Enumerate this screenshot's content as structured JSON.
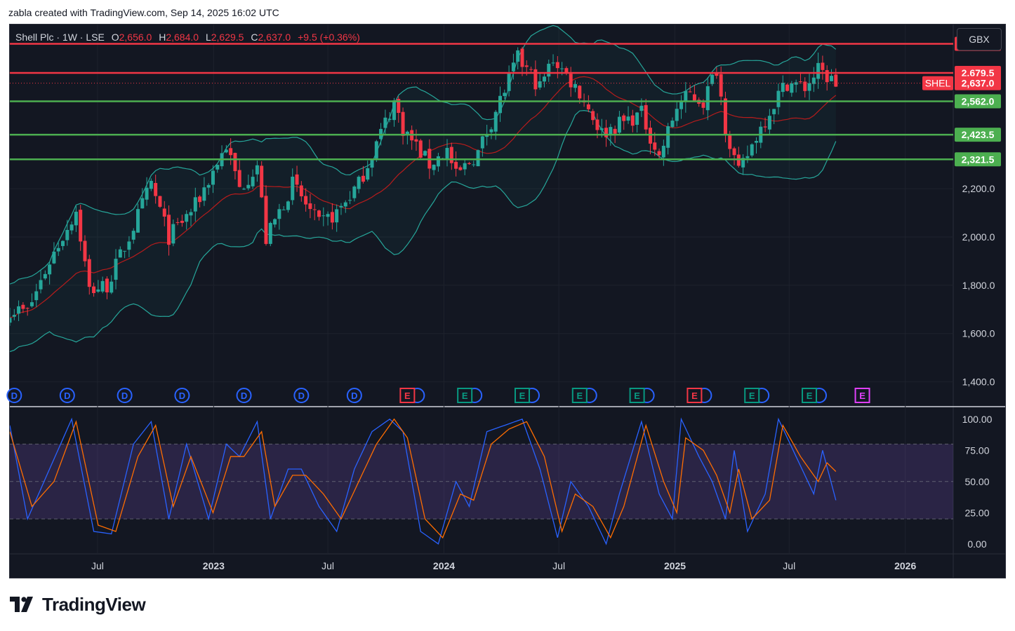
{
  "header": {
    "attribution": "zabla created with TradingView.com, Sep 14, 2025 16:02 UTC",
    "symbol": "Shell Plc · 1W · LSE",
    "o_label": "O",
    "o_value": "2,656.0",
    "h_label": "H",
    "h_value": "2,684.0",
    "l_label": "L",
    "l_value": "2,629.5",
    "c_label": "C",
    "c_value": "2,637.0",
    "change": "+9.5 (+0.36%)"
  },
  "currency_button": "GBX",
  "brand": {
    "name": "TradingView"
  },
  "colors": {
    "up": "#26a69a",
    "down": "#f23645",
    "resistance": "#f23645",
    "support": "#4caf50",
    "bb": "#26a69a",
    "basis": "#b71c1c",
    "k": "#2962ff",
    "d": "#ff6d00",
    "band": "#7e57c2",
    "earnings_dividend": "#2962ff"
  },
  "chart_data": [
    {
      "type": "candlestick",
      "title": "Shell Plc · 1W · LSE",
      "ylim": [
        1300,
        2880
      ],
      "y_ticks": [
        {
          "value": 1400,
          "label": "1,400.0"
        },
        {
          "value": 1600,
          "label": "1,600.0"
        },
        {
          "value": 1800,
          "label": "1,800.0"
        },
        {
          "value": 2000,
          "label": "2,000.0"
        },
        {
          "value": 2200,
          "label": "2,200.0"
        }
      ],
      "x_ticks": [
        {
          "date": "2022-07-01",
          "label": "Jul",
          "bold": false
        },
        {
          "date": "2023-01-01",
          "label": "2023",
          "bold": true
        },
        {
          "date": "2023-07-01",
          "label": "Jul",
          "bold": false
        },
        {
          "date": "2024-01-01",
          "label": "2024",
          "bold": true
        },
        {
          "date": "2024-07-01",
          "label": "Jul",
          "bold": false
        },
        {
          "date": "2025-01-01",
          "label": "2025",
          "bold": true
        },
        {
          "date": "2025-07-01",
          "label": "Jul",
          "bold": false
        },
        {
          "date": "2026-01-01",
          "label": "2026",
          "bold": true
        }
      ],
      "xlim": [
        "2022-02-12",
        "2026-03-18"
      ],
      "horizontal_levels": [
        {
          "value": 2800.0,
          "label": "2,800.0",
          "kind": "resistance"
        },
        {
          "value": 2679.5,
          "label": "2,679.5",
          "kind": "resistance"
        },
        {
          "value": 2562.0,
          "label": "2,562.0",
          "kind": "support"
        },
        {
          "value": 2423.5,
          "label": "2,423.5",
          "kind": "support"
        },
        {
          "value": 2321.5,
          "label": "2,321.5",
          "kind": "support"
        }
      ],
      "last_price": {
        "symbol": "SHEL",
        "value": 2637.0,
        "label": "2,637.0"
      },
      "close_anchors": [
        [
          "2022-02-12",
          1700
        ],
        [
          "2022-03-12",
          1690
        ],
        [
          "2022-04-16",
          1900
        ],
        [
          "2022-05-28",
          2110
        ],
        [
          "2022-06-18",
          1780
        ],
        [
          "2022-07-16",
          1800
        ],
        [
          "2022-08-20",
          2000
        ],
        [
          "2022-09-24",
          2220
        ],
        [
          "2022-10-22",
          2000
        ],
        [
          "2022-12-03",
          2130
        ],
        [
          "2023-01-21",
          2380
        ],
        [
          "2023-02-11",
          2200
        ],
        [
          "2023-03-11",
          2300
        ],
        [
          "2023-03-25",
          1990
        ],
        [
          "2023-05-06",
          2220
        ],
        [
          "2023-06-17",
          2050
        ],
        [
          "2023-07-15",
          2100
        ],
        [
          "2023-08-19",
          2220
        ],
        [
          "2023-10-14",
          2560
        ],
        [
          "2023-10-28",
          2450
        ],
        [
          "2023-12-09",
          2300
        ],
        [
          "2024-01-06",
          2360
        ],
        [
          "2024-01-20",
          2250
        ],
        [
          "2024-02-24",
          2350
        ],
        [
          "2024-04-06",
          2610
        ],
        [
          "2024-04-27",
          2740
        ],
        [
          "2024-05-18",
          2670
        ],
        [
          "2024-06-01",
          2620
        ],
        [
          "2024-06-22",
          2740
        ],
        [
          "2024-08-03",
          2600
        ],
        [
          "2024-09-07",
          2430
        ],
        [
          "2024-10-05",
          2470
        ],
        [
          "2024-11-09",
          2510
        ],
        [
          "2024-12-07",
          2330
        ],
        [
          "2025-01-04",
          2540
        ],
        [
          "2025-01-25",
          2590
        ],
        [
          "2025-02-15",
          2560
        ],
        [
          "2025-03-08",
          2700
        ],
        [
          "2025-03-22",
          2460
        ],
        [
          "2025-04-12",
          2260
        ],
        [
          "2025-05-10",
          2420
        ],
        [
          "2025-06-14",
          2590
        ],
        [
          "2025-06-28",
          2640
        ],
        [
          "2025-07-26",
          2620
        ],
        [
          "2025-08-16",
          2690
        ],
        [
          "2025-09-13",
          2637
        ]
      ],
      "event_markers": [
        {
          "date": "2022-02-19",
          "type": "D"
        },
        {
          "date": "2022-05-14",
          "type": "D"
        },
        {
          "date": "2022-08-13",
          "type": "D"
        },
        {
          "date": "2022-11-12",
          "type": "D"
        },
        {
          "date": "2023-02-18",
          "type": "D"
        },
        {
          "date": "2023-05-20",
          "type": "D"
        },
        {
          "date": "2023-08-12",
          "type": "D"
        },
        {
          "date": "2023-11-04",
          "type": "E",
          "result": "miss"
        },
        {
          "date": "2024-02-03",
          "type": "E",
          "result": "beat"
        },
        {
          "date": "2024-05-04",
          "type": "E",
          "result": "beat"
        },
        {
          "date": "2024-08-03",
          "type": "E",
          "result": "beat"
        },
        {
          "date": "2024-11-02",
          "type": "E",
          "result": "beat"
        },
        {
          "date": "2025-02-01",
          "type": "E",
          "result": "miss"
        },
        {
          "date": "2025-05-03",
          "type": "E",
          "result": "beat"
        },
        {
          "date": "2025-08-02",
          "type": "E",
          "result": "beat"
        },
        {
          "date": "2025-10-25",
          "type": "E",
          "result": "upcoming"
        }
      ]
    },
    {
      "type": "line",
      "ylim": [
        -8,
        110
      ],
      "y_ticks": [
        {
          "value": 100,
          "label": "100.00"
        },
        {
          "value": 75,
          "label": "75.00"
        },
        {
          "value": 50,
          "label": "50.00"
        },
        {
          "value": 25,
          "label": "25.00"
        },
        {
          "value": 0,
          "label": "0.00"
        }
      ],
      "band": [
        20,
        80
      ],
      "midline": 50,
      "series": [
        {
          "color": "#2962ff",
          "anchors": [
            [
              "2022-02-12",
              95
            ],
            [
              "2022-03-12",
              20
            ],
            [
              "2022-04-16",
              60
            ],
            [
              "2022-05-21",
              100
            ],
            [
              "2022-06-25",
              10
            ],
            [
              "2022-07-23",
              8
            ],
            [
              "2022-08-27",
              80
            ],
            [
              "2022-09-24",
              98
            ],
            [
              "2022-10-22",
              20
            ],
            [
              "2022-11-19",
              80
            ],
            [
              "2022-12-24",
              20
            ],
            [
              "2023-01-21",
              80
            ],
            [
              "2023-02-11",
              70
            ],
            [
              "2023-03-11",
              98
            ],
            [
              "2023-04-01",
              20
            ],
            [
              "2023-04-29",
              60
            ],
            [
              "2023-05-20",
              60
            ],
            [
              "2023-06-17",
              30
            ],
            [
              "2023-07-15",
              10
            ],
            [
              "2023-08-12",
              60
            ],
            [
              "2023-09-09",
              90
            ],
            [
              "2023-10-07",
              100
            ],
            [
              "2023-10-28",
              90
            ],
            [
              "2023-11-25",
              10
            ],
            [
              "2023-12-23",
              0
            ],
            [
              "2024-01-20",
              50
            ],
            [
              "2024-02-10",
              30
            ],
            [
              "2024-03-09",
              90
            ],
            [
              "2024-04-06",
              95
            ],
            [
              "2024-05-04",
              100
            ],
            [
              "2024-06-01",
              60
            ],
            [
              "2024-06-29",
              5
            ],
            [
              "2024-07-20",
              50
            ],
            [
              "2024-08-17",
              30
            ],
            [
              "2024-09-14",
              0
            ],
            [
              "2024-10-05",
              40
            ],
            [
              "2024-11-09",
              98
            ],
            [
              "2024-12-07",
              40
            ],
            [
              "2024-12-28",
              20
            ],
            [
              "2025-01-11",
              100
            ],
            [
              "2025-02-08",
              70
            ],
            [
              "2025-03-01",
              50
            ],
            [
              "2025-03-22",
              20
            ],
            [
              "2025-04-05",
              75
            ],
            [
              "2025-04-26",
              10
            ],
            [
              "2025-05-24",
              40
            ],
            [
              "2025-06-14",
              100
            ],
            [
              "2025-07-12",
              70
            ],
            [
              "2025-08-09",
              40
            ],
            [
              "2025-08-23",
              75
            ],
            [
              "2025-09-13",
              35
            ]
          ]
        },
        {
          "color": "#ff6d00",
          "anchors": [
            [
              "2022-02-12",
              90
            ],
            [
              "2022-03-19",
              30
            ],
            [
              "2022-04-23",
              50
            ],
            [
              "2022-05-28",
              98
            ],
            [
              "2022-07-02",
              15
            ],
            [
              "2022-07-30",
              10
            ],
            [
              "2022-09-03",
              70
            ],
            [
              "2022-10-01",
              95
            ],
            [
              "2022-10-29",
              30
            ],
            [
              "2022-11-26",
              70
            ],
            [
              "2022-12-31",
              25
            ],
            [
              "2023-01-28",
              70
            ],
            [
              "2023-02-18",
              70
            ],
            [
              "2023-03-18",
              90
            ],
            [
              "2023-04-08",
              30
            ],
            [
              "2023-05-06",
              55
            ],
            [
              "2023-05-27",
              55
            ],
            [
              "2023-06-24",
              40
            ],
            [
              "2023-07-22",
              20
            ],
            [
              "2023-08-19",
              50
            ],
            [
              "2023-09-16",
              80
            ],
            [
              "2023-10-14",
              100
            ],
            [
              "2023-11-04",
              85
            ],
            [
              "2023-12-02",
              20
            ],
            [
              "2023-12-30",
              5
            ],
            [
              "2024-01-27",
              40
            ],
            [
              "2024-02-17",
              35
            ],
            [
              "2024-03-16",
              80
            ],
            [
              "2024-04-13",
              92
            ],
            [
              "2024-05-11",
              98
            ],
            [
              "2024-06-08",
              70
            ],
            [
              "2024-07-06",
              10
            ],
            [
              "2024-07-27",
              40
            ],
            [
              "2024-08-24",
              30
            ],
            [
              "2024-09-21",
              5
            ],
            [
              "2024-10-12",
              30
            ],
            [
              "2024-11-16",
              95
            ],
            [
              "2024-12-14",
              50
            ],
            [
              "2025-01-04",
              25
            ],
            [
              "2025-01-18",
              85
            ],
            [
              "2025-02-15",
              75
            ],
            [
              "2025-03-08",
              55
            ],
            [
              "2025-03-29",
              25
            ],
            [
              "2025-04-12",
              60
            ],
            [
              "2025-05-03",
              20
            ],
            [
              "2025-05-31",
              35
            ],
            [
              "2025-06-21",
              95
            ],
            [
              "2025-07-19",
              70
            ],
            [
              "2025-08-16",
              50
            ],
            [
              "2025-08-30",
              65
            ],
            [
              "2025-09-13",
              58
            ]
          ]
        }
      ]
    }
  ]
}
